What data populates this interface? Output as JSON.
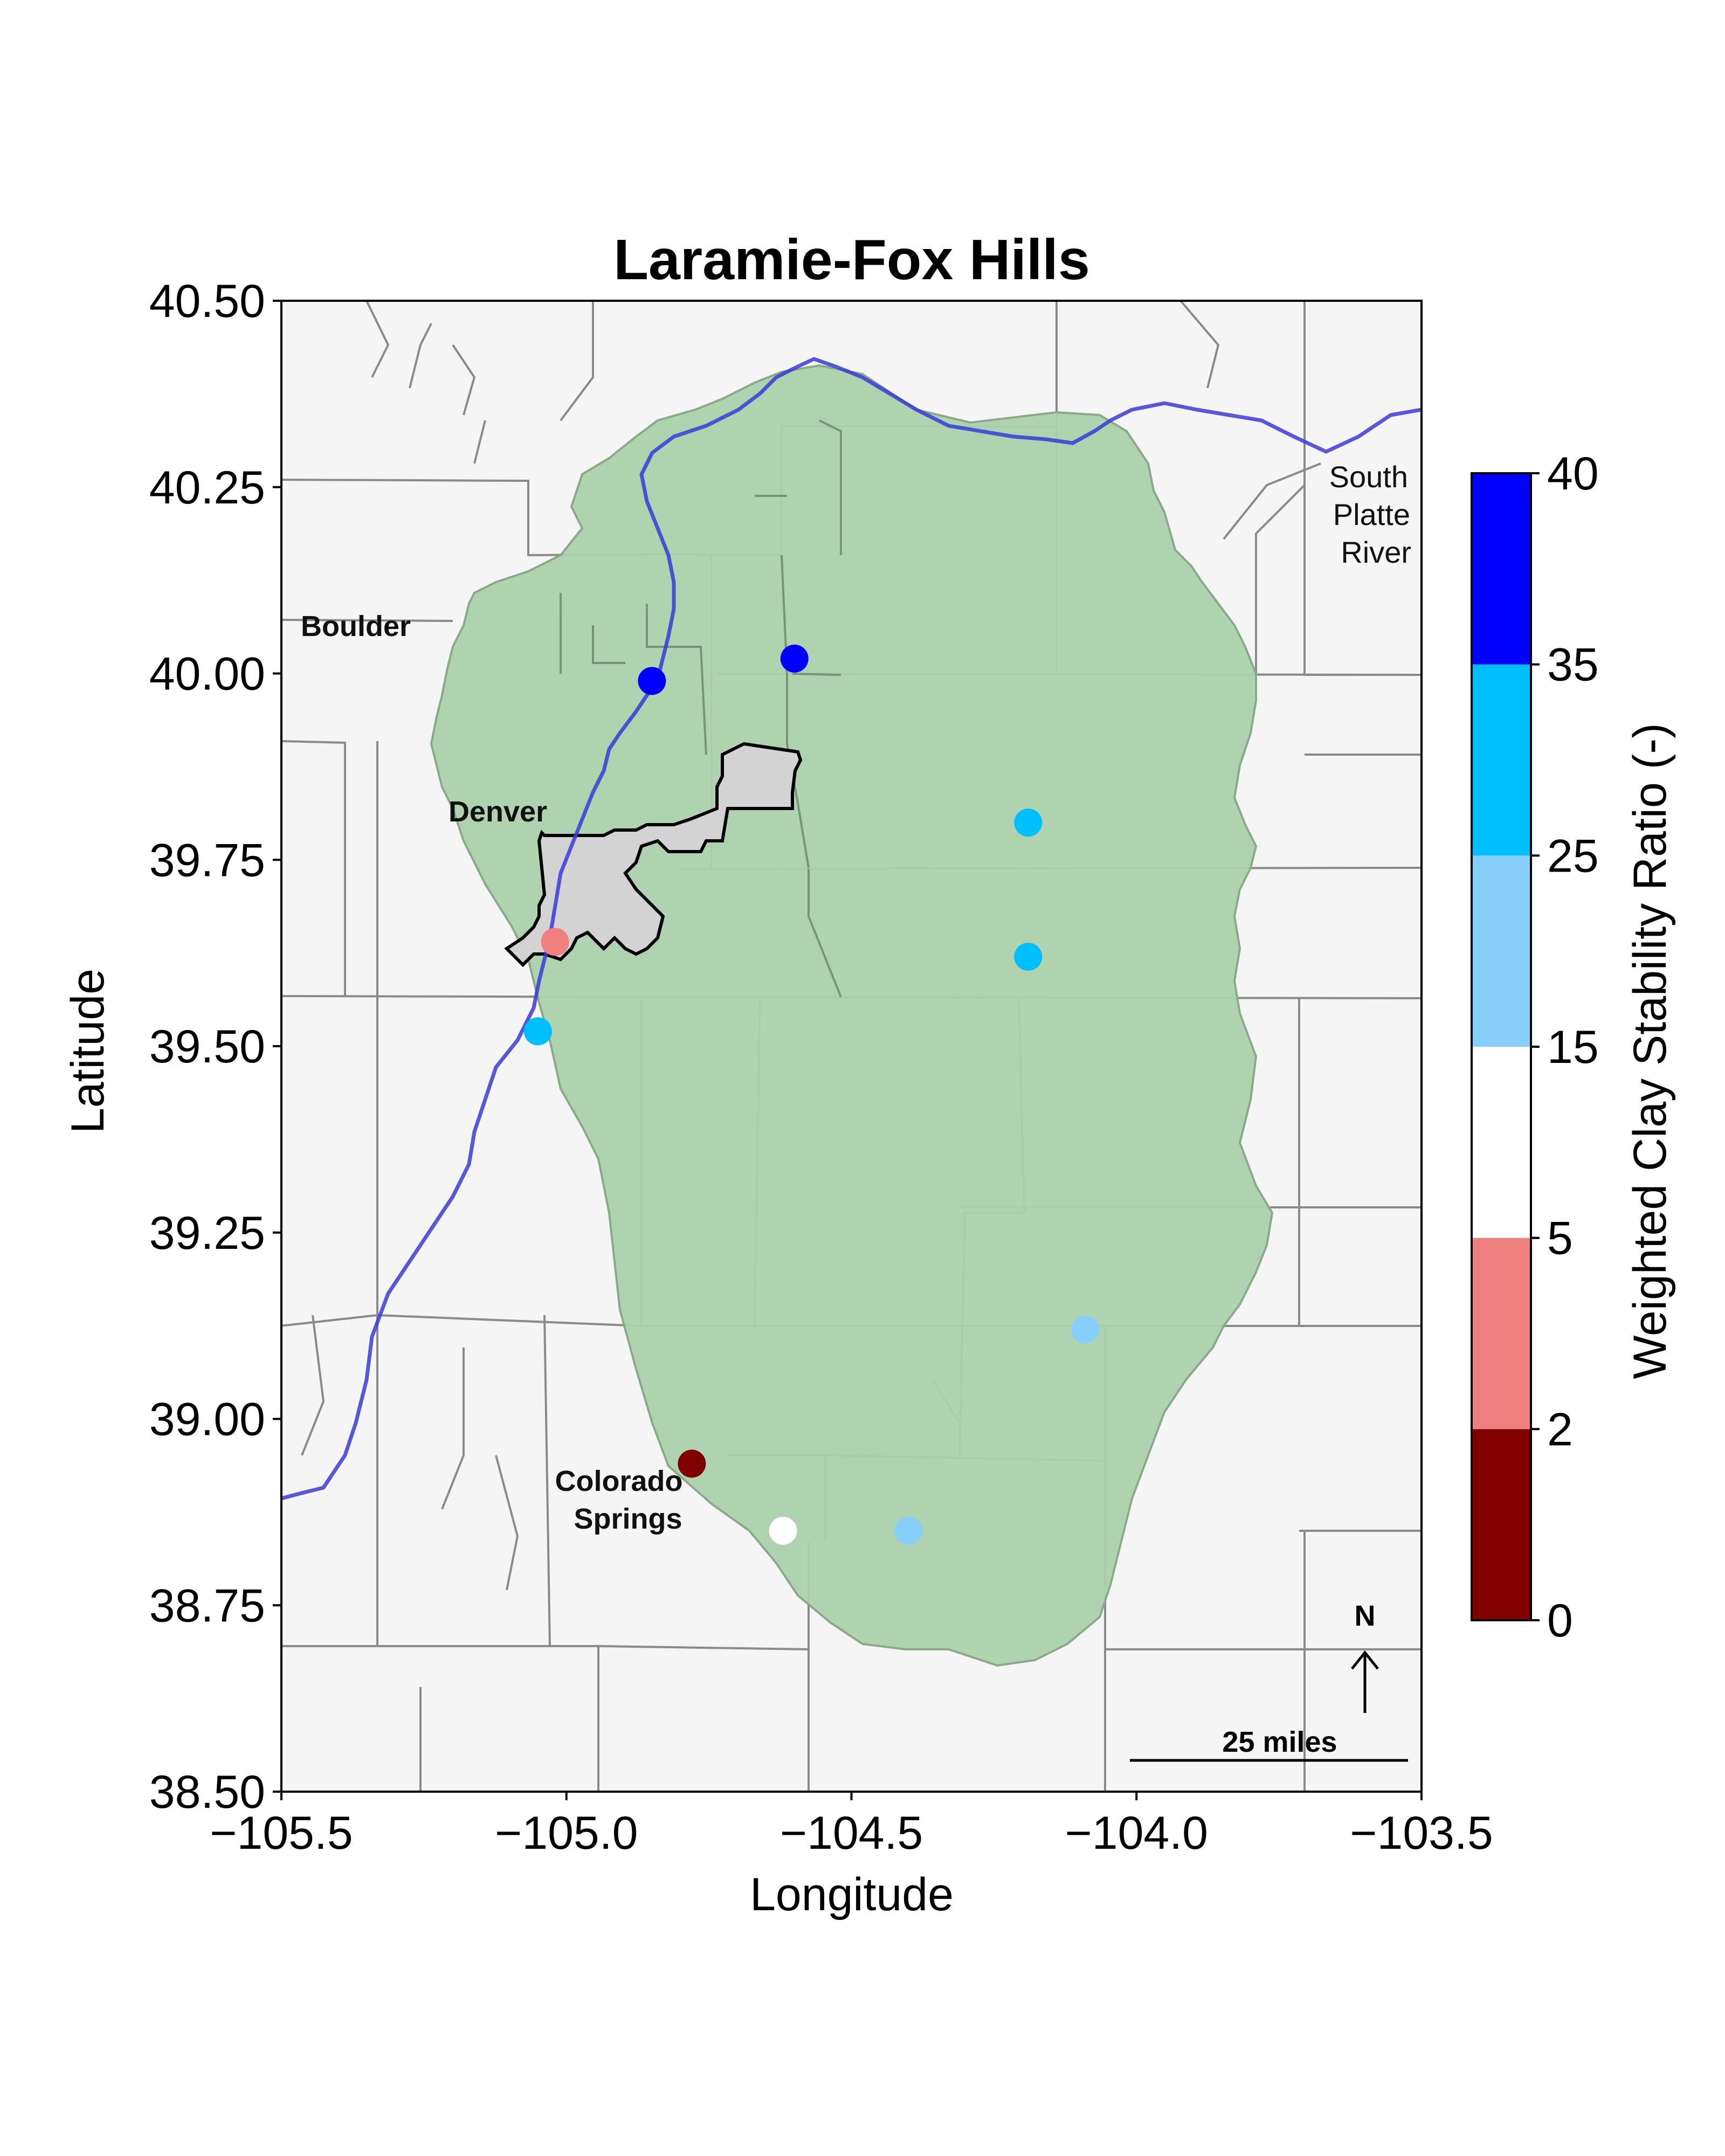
{
  "chart_data": {
    "type": "scatter",
    "title": "Laramie-Fox Hills",
    "xlabel": "Longitude",
    "ylabel": "Latitude",
    "xlim": [
      -105.5,
      -103.5
    ],
    "ylim": [
      38.5,
      40.5
    ],
    "xticks": [
      "−105.5",
      "−105.0",
      "−104.5",
      "−104.0",
      "−103.5"
    ],
    "yticks": [
      "38.50",
      "38.75",
      "39.00",
      "39.25",
      "39.50",
      "39.75",
      "40.00",
      "40.25",
      "40.50"
    ],
    "grid": false,
    "labels": {
      "boulder": "Boulder",
      "denver": "Denver",
      "colorado_springs_1": "Colorado",
      "colorado_springs_2": "Springs",
      "river_1": "South",
      "river_2": "Platte",
      "river_3": "River",
      "north": "N",
      "scale": "25 miles"
    },
    "colorbar": {
      "label": "Weighted Clay Stability Ratio (-)",
      "ticks": [
        "0",
        "2",
        "5",
        "15",
        "25",
        "35",
        "40"
      ],
      "bins": [
        {
          "range": [
            0,
            2
          ],
          "color": "#800000"
        },
        {
          "range": [
            2,
            5
          ],
          "color": "#f08080"
        },
        {
          "range": [
            5,
            15
          ],
          "color": "#ffffff"
        },
        {
          "range": [
            15,
            25
          ],
          "color": "#87cefa"
        },
        {
          "range": [
            25,
            35
          ],
          "color": "#00bfff"
        },
        {
          "range": [
            35,
            40
          ],
          "color": "#0000ff"
        }
      ]
    },
    "points": [
      {
        "lon": -104.85,
        "lat": 39.99,
        "color": "#0000ff"
      },
      {
        "lon": -104.6,
        "lat": 40.02,
        "color": "#0000ff"
      },
      {
        "lon": -104.19,
        "lat": 39.8,
        "color": "#00bfff"
      },
      {
        "lon": -104.19,
        "lat": 39.62,
        "color": "#00bfff"
      },
      {
        "lon": -105.05,
        "lat": 39.52,
        "color": "#00bfff"
      },
      {
        "lon": -105.02,
        "lat": 39.64,
        "color": "#f08080"
      },
      {
        "lon": -104.09,
        "lat": 39.12,
        "color": "#87cefa"
      },
      {
        "lon": -104.78,
        "lat": 38.94,
        "color": "#800000"
      },
      {
        "lon": -104.62,
        "lat": 38.85,
        "color": "#ffffff"
      },
      {
        "lon": -104.4,
        "lat": 38.85,
        "color": "#87cefa"
      }
    ]
  },
  "style": {
    "map_bg": "#f5f5f5",
    "aquifer_fill": "#abd1aa",
    "river_color": "#3a3ad9",
    "denver_fill": "#d3d3d3"
  }
}
